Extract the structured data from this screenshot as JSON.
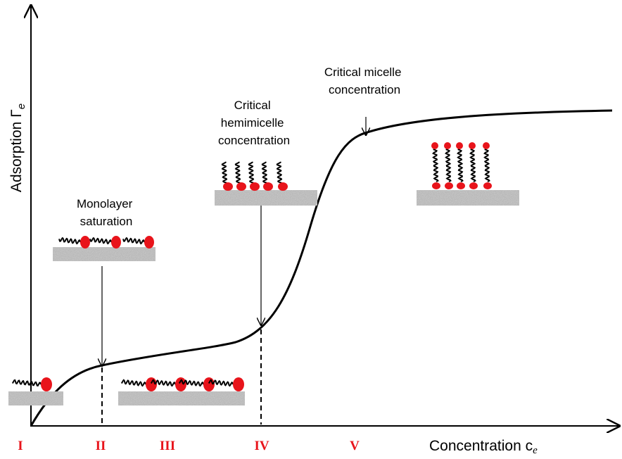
{
  "y_axis": {
    "label": "Adsorption Γ",
    "subscript": "e"
  },
  "x_axis": {
    "label": "Concentration c",
    "subscript": "e"
  },
  "regions": [
    "I",
    "II",
    "III",
    "IV",
    "V"
  ],
  "annotations": {
    "monolayer": [
      "Monolayer",
      "saturation"
    ],
    "hemimicelle": [
      "Critical",
      "hemimicelle",
      "concentration"
    ],
    "micelle": [
      "Critical micelle",
      "concentration"
    ]
  }
}
